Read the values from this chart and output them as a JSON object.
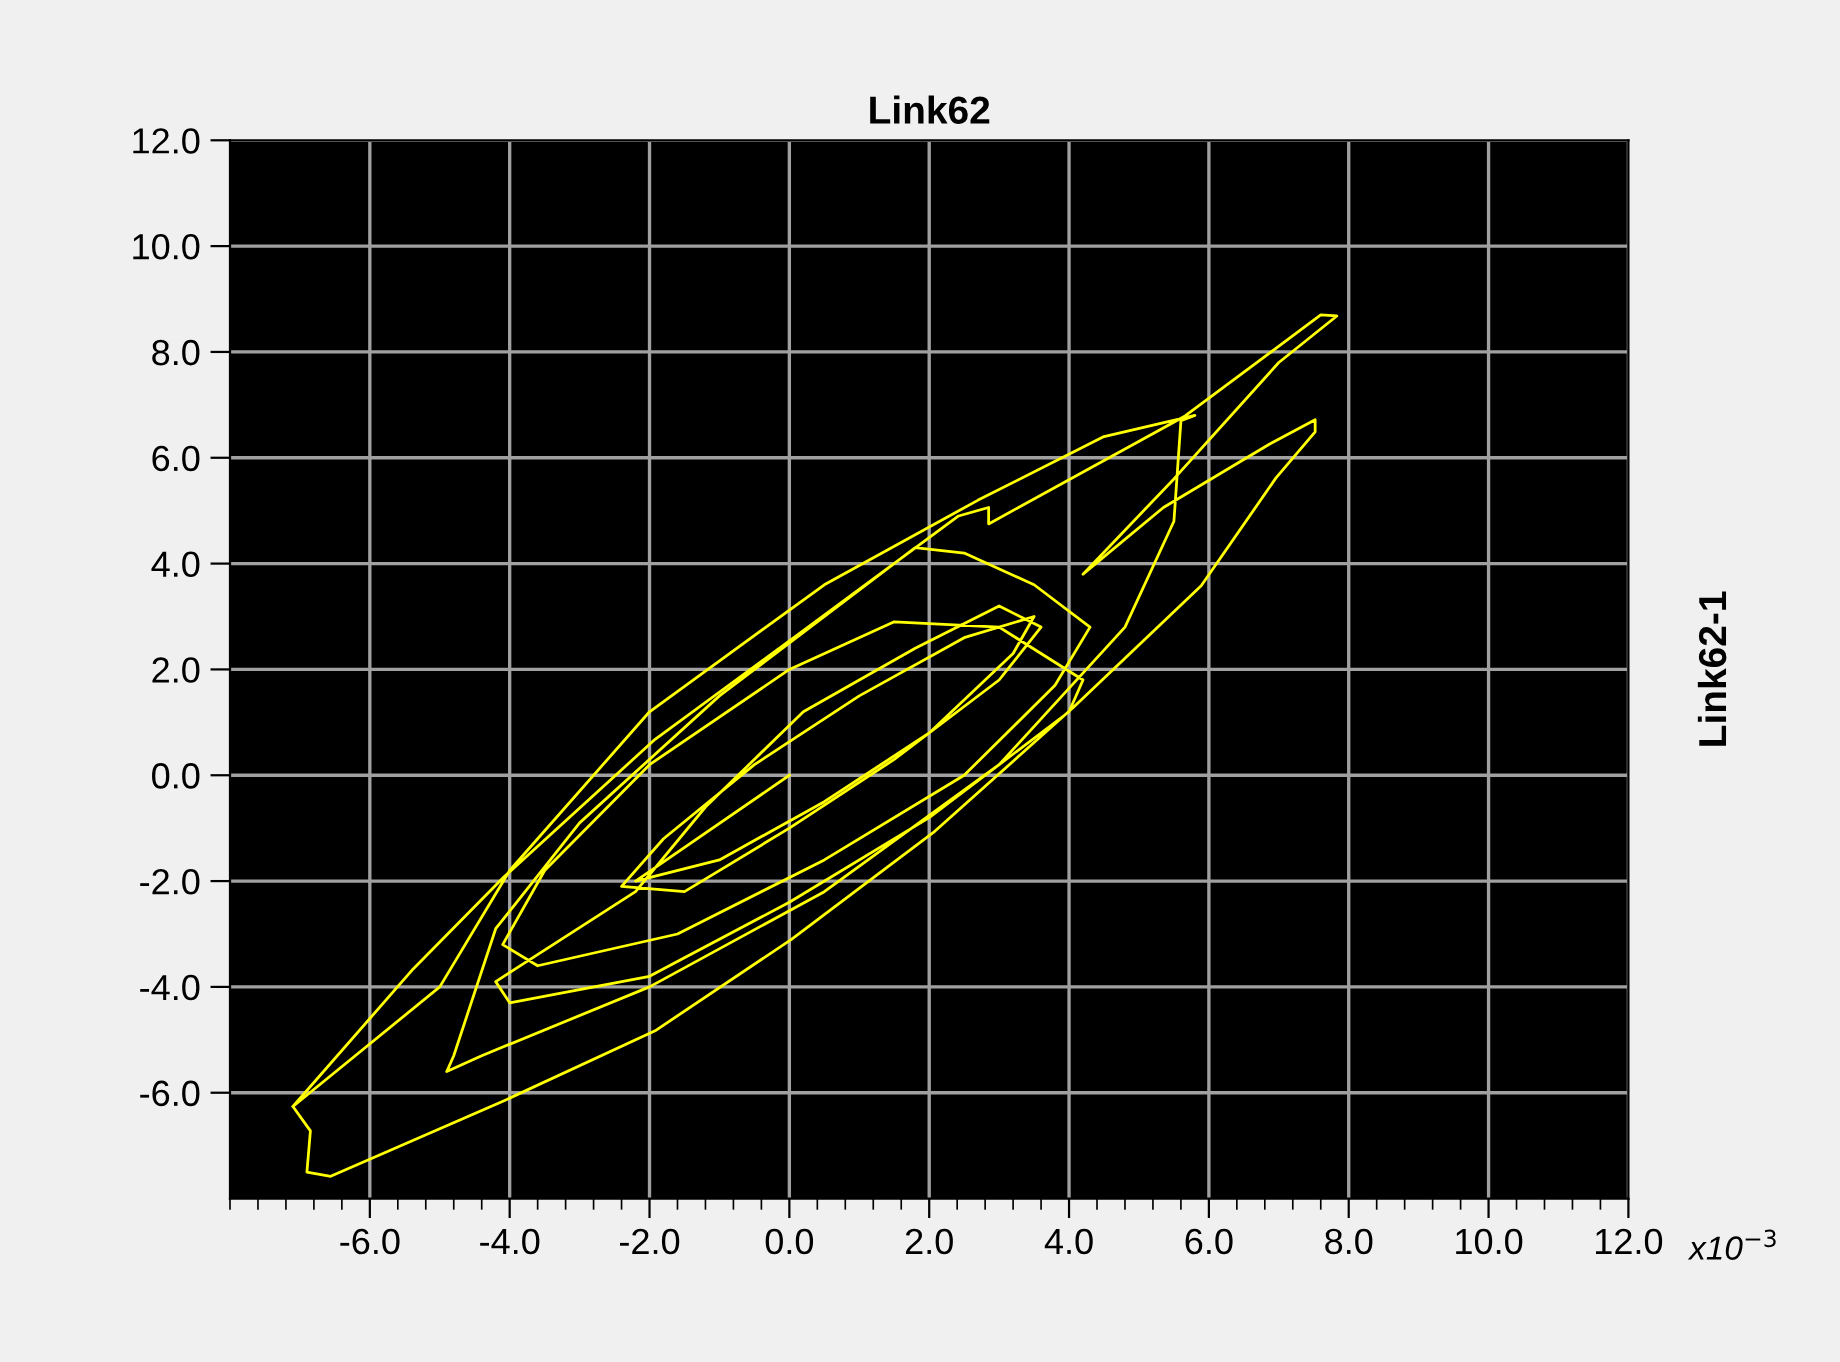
{
  "chart_data": {
    "type": "line",
    "title": "Link62",
    "ylabel": "Link62-1",
    "annotations": [
      "x10$^{−3}$"
    ],
    "xlim": [
      -8,
      12
    ],
    "ylim": [
      -8,
      12
    ],
    "xticks": [
      {
        "value": -6,
        "label": "-6.0"
      },
      {
        "value": -4,
        "label": "-4.0"
      },
      {
        "value": -2,
        "label": "-2.0"
      },
      {
        "value": 0,
        "label": "0.0"
      },
      {
        "value": 2,
        "label": "2.0"
      },
      {
        "value": 4,
        "label": "4.0"
      },
      {
        "value": 6,
        "label": "6.0"
      },
      {
        "value": 8,
        "label": "8.0"
      },
      {
        "value": 10,
        "label": "10.0"
      },
      {
        "value": 12,
        "label": "12.0"
      }
    ],
    "yticks": [
      {
        "value": -6,
        "label": "-6.0"
      },
      {
        "value": -4,
        "label": "-4.0"
      },
      {
        "value": -2,
        "label": "-2.0"
      },
      {
        "value": 0,
        "label": "0.0"
      },
      {
        "value": 2,
        "label": "2.0"
      },
      {
        "value": 4,
        "label": "4.0"
      },
      {
        "value": 6,
        "label": "6.0"
      },
      {
        "value": 8,
        "label": "8.0"
      },
      {
        "value": 10,
        "label": "10.0"
      },
      {
        "value": 12,
        "label": "12.0"
      }
    ],
    "grid": true,
    "series": [
      {
        "color": "#ffff00",
        "x": [
          0,
          -2.2,
          -1,
          0.5,
          2,
          3.2,
          3.5,
          2.5,
          1,
          -0.5,
          -1.8,
          -2.4,
          -1.5,
          0,
          1.5,
          3,
          3.6,
          3,
          1.8,
          0.2,
          -1.2,
          -2.2,
          -4.2,
          -4,
          -2,
          0,
          2,
          4,
          4.2,
          3,
          1.5,
          0,
          -2,
          -3.5,
          -4.1,
          -3.6,
          -1.6,
          0.5,
          2.5,
          3.8,
          4.3,
          3.5,
          2.5,
          1.8,
          0.8,
          -1,
          -3,
          -4.2,
          -4.8,
          -4.9,
          -4.4,
          -2,
          0.5,
          3,
          4.8,
          5.5,
          5.6,
          5.8,
          4.5,
          2.7,
          0.5,
          -2,
          -4,
          -5,
          -7.1,
          -6.85,
          -6.9,
          -6.56,
          -4.08,
          -1.92,
          0.03,
          2.08,
          4.06,
          5.89,
          6.96,
          7.52,
          7.52,
          6.87,
          5.35,
          4.2,
          5.5,
          7.0,
          7.83,
          7.6,
          5.66,
          2.85,
          2.85,
          2.42,
          0.03,
          -1.92,
          -4.08,
          -5.38,
          -7.1
        ],
        "values": [
          0,
          -2,
          -1.6,
          -0.5,
          0.8,
          2.3,
          3,
          2.6,
          1.5,
          0.2,
          -1.2,
          -2.1,
          -2.2,
          -1,
          0.3,
          1.8,
          2.8,
          3.2,
          2.4,
          1.2,
          -0.6,
          -2.2,
          -3.9,
          -4.3,
          -3.8,
          -2.4,
          -0.8,
          1.2,
          1.8,
          2.8,
          2.9,
          2,
          0.2,
          -1.8,
          -3.2,
          -3.6,
          -3,
          -1.6,
          0,
          1.7,
          2.8,
          3.6,
          4.2,
          4.3,
          3.3,
          1.5,
          -0.9,
          -2.9,
          -5.3,
          -5.6,
          -5.3,
          -4,
          -2.2,
          0.2,
          2.8,
          4.8,
          6.7,
          6.8,
          6.4,
          5.2,
          3.6,
          1.2,
          -1.8,
          -4,
          -6.26,
          -6.72,
          -7.5,
          -7.58,
          -6.15,
          -4.83,
          -3.1,
          -1.06,
          1.28,
          3.58,
          5.62,
          6.49,
          6.72,
          6.26,
          5.06,
          3.8,
          5.6,
          7.8,
          8.68,
          8.7,
          6.79,
          4.75,
          5.06,
          4.9,
          2.57,
          0.68,
          -1.92,
          -3.66,
          -6.26
        ]
      }
    ]
  }
}
